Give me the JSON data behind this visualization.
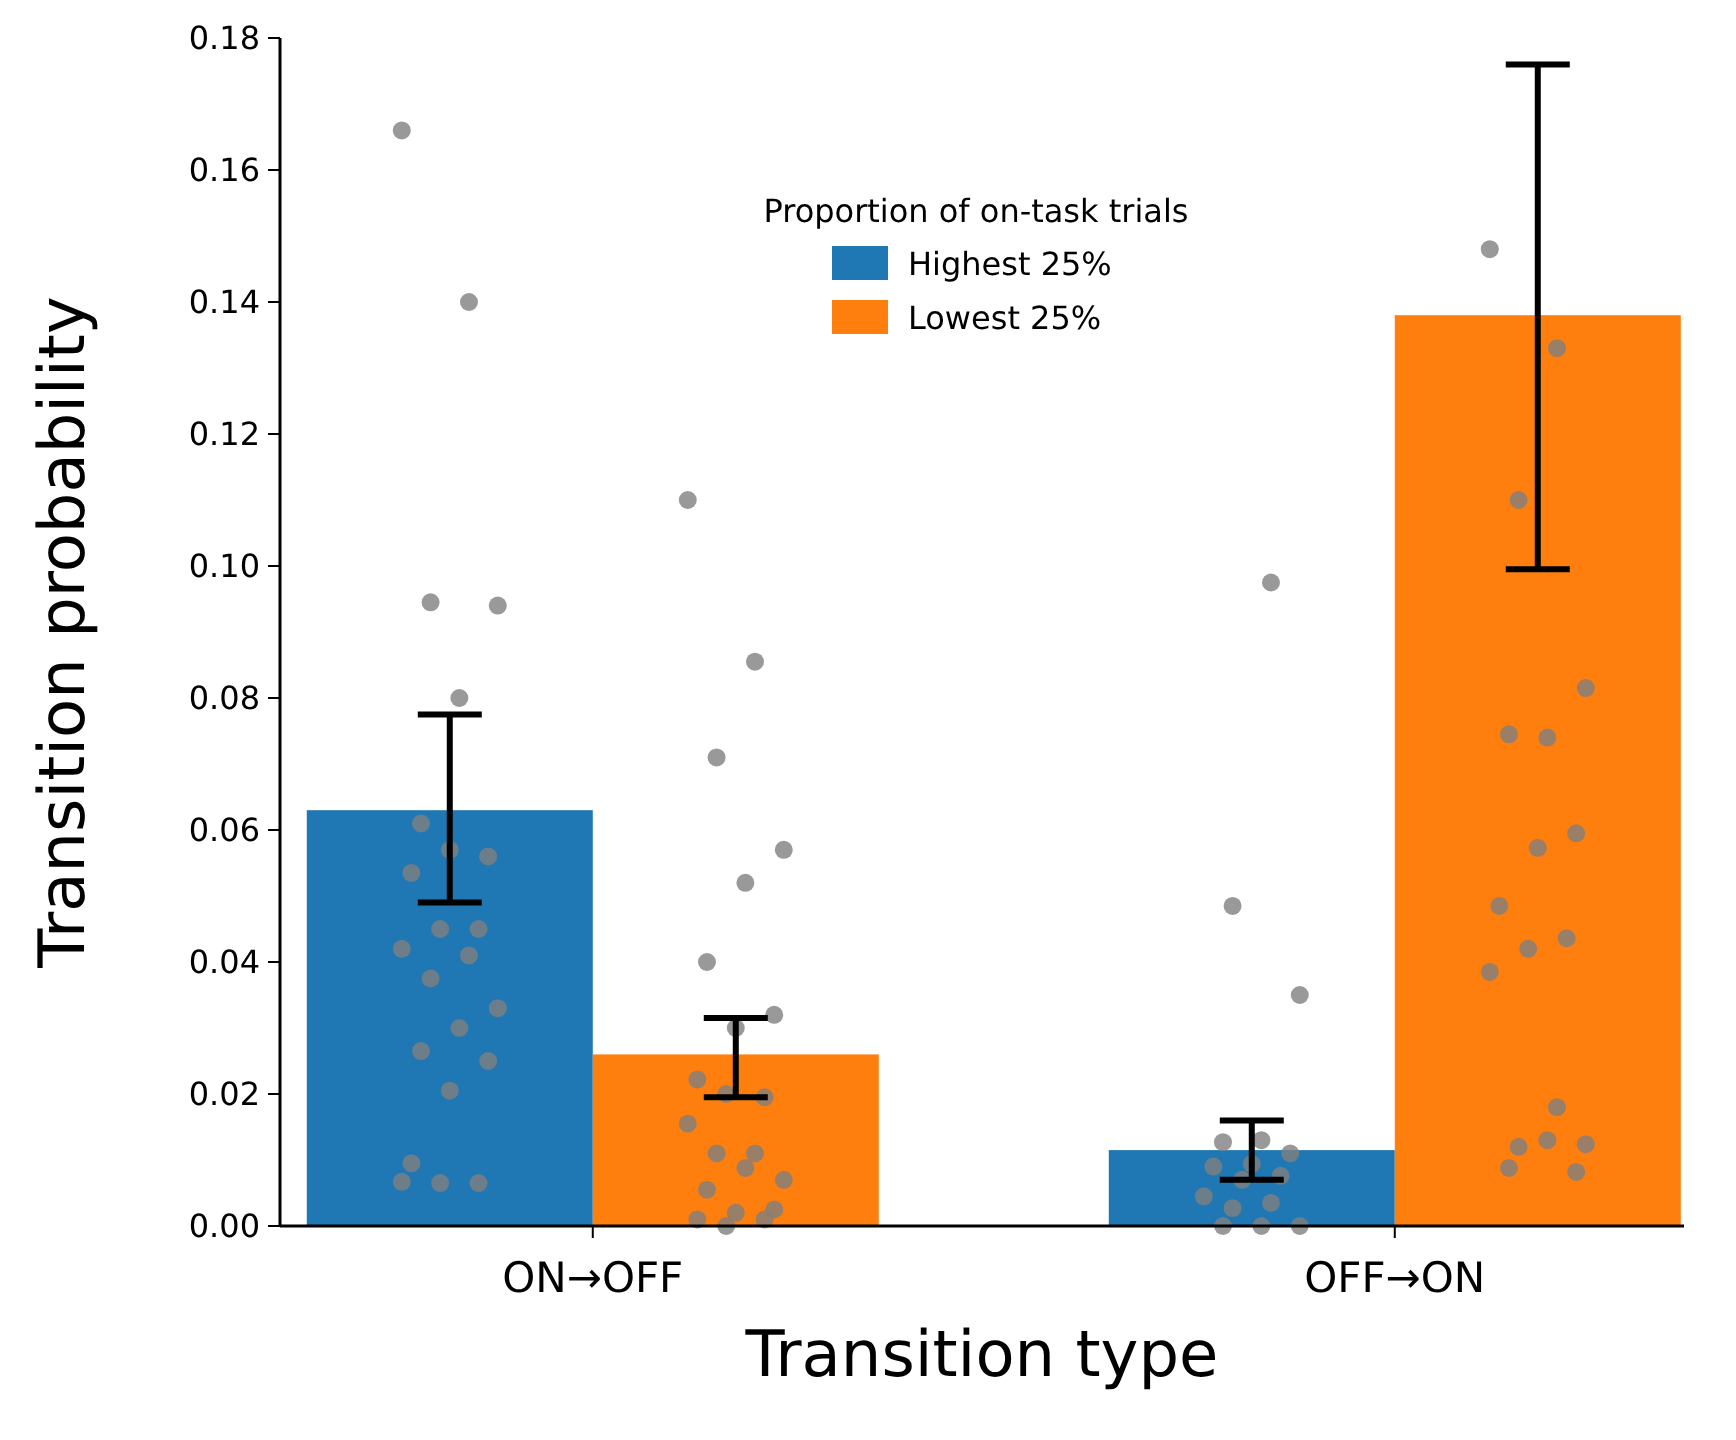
{
  "chart_data": {
    "type": "bar",
    "xlabel": "Transition type",
    "ylabel": "Transition probability",
    "legend_title": "Proportion of on-task trials",
    "categories": [
      "ON→OFF",
      "OFF→ON"
    ],
    "series": [
      {
        "name": "Highest 25%",
        "color": "#1f77b4",
        "values": [
          0.063,
          0.0115
        ],
        "errors": [
          [
            0.049,
            0.0775
          ],
          [
            0.007,
            0.016
          ]
        ]
      },
      {
        "name": "Lowest 25%",
        "color": "#ff7f0e",
        "values": [
          0.026,
          0.138
        ],
        "errors": [
          [
            0.0195,
            0.0315
          ],
          [
            0.0995,
            0.176
          ]
        ]
      },
      {
        "type": "scatter",
        "color": "#7f7f7f",
        "x": [
          "ON→OFF",
          "ON→OFF",
          "ON→OFF",
          "ON→OFF",
          "ON→OFF",
          "ON→OFF",
          "ON→OFF",
          "ON→OFF",
          "ON→OFF",
          "ON→OFF",
          "ON→OFF",
          "ON→OFF",
          "ON→OFF",
          "ON→OFF",
          "ON→OFF",
          "ON→OFF",
          "ON→OFF",
          "ON→OFF",
          "ON→OFF",
          "ON→OFF",
          "ON→OFF",
          "ON→OFF",
          "ON→OFF",
          "OFF→ON",
          "OFF→ON",
          "OFF→ON",
          "OFF→ON",
          "OFF→ON",
          "OFF→ON",
          "OFF→ON",
          "OFF→ON",
          "OFF→ON",
          "OFF→ON",
          "OFF→ON",
          "OFF→ON",
          "OFF→ON",
          "OFF→ON",
          "OFF→ON",
          "OFF→ON"
        ],
        "values": [
          0.166,
          0.14,
          0.0945,
          0.094,
          0.08,
          0.061,
          0.056,
          0.057,
          0.0535,
          0.045,
          0.045,
          0.042,
          0.041,
          0.0375,
          0.033,
          0.03,
          0.0265,
          0.025,
          0.0205,
          0.0095,
          0.0065,
          0.0065,
          0.0067,
          0.0975,
          0.0485,
          0.035,
          0.013,
          0.0127,
          0.011,
          0.0094,
          0.009,
          0.0076,
          0.007,
          0.0045,
          0.0035,
          0.0027,
          0,
          0,
          0
        ]
      },
      {
        "type": "scatter",
        "color": "#7f7f7f",
        "x": [
          "ON→OFF",
          "ON→OFF",
          "ON→OFF",
          "ON→OFF",
          "ON→OFF",
          "ON→OFF",
          "ON→OFF",
          "ON→OFF",
          "ON→OFF",
          "ON→OFF",
          "ON→OFF",
          "ON→OFF",
          "ON→OFF",
          "ON→OFF",
          "ON→OFF",
          "ON→OFF",
          "ON→OFF",
          "ON→OFF",
          "ON→OFF",
          "ON→OFF",
          "ON→OFF",
          "ON→OFF",
          "OFF→ON",
          "OFF→ON",
          "OFF→ON",
          "OFF→ON",
          "OFF→ON",
          "OFF→ON",
          "OFF→ON",
          "OFF→ON",
          "OFF→ON",
          "OFF→ON",
          "OFF→ON",
          "OFF→ON",
          "OFF→ON",
          "OFF→ON",
          "OFF→ON",
          "OFF→ON",
          "OFF→ON",
          "OFF→ON"
        ],
        "values": [
          0.11,
          0.0855,
          0.071,
          0.057,
          0.052,
          0.04,
          0.032,
          0.03,
          0.0222,
          0.0195,
          0.02,
          0.0155,
          0.011,
          0.011,
          0.007,
          0.0088,
          0.0055,
          0.0025,
          0.002,
          0.001,
          0.001,
          0,
          0.148,
          0.133,
          0.11,
          0.0815,
          0.074,
          0.0745,
          0.0595,
          0.0573,
          0.0485,
          0.0436,
          0.042,
          0.0385,
          0.018,
          0.012,
          0.0124,
          0.013,
          0.0088,
          0.0082
        ]
      }
    ],
    "ylim": [
      0,
      0.18
    ],
    "yticks": [
      {
        "value": 0,
        "label": "0.00"
      },
      {
        "value": 0.02,
        "label": "0.02"
      },
      {
        "value": 0.04,
        "label": "0.04"
      },
      {
        "value": 0.06,
        "label": "0.06"
      },
      {
        "value": 0.08,
        "label": "0.08"
      },
      {
        "value": 0.1,
        "label": "0.10"
      },
      {
        "value": 0.12,
        "label": "0.12"
      },
      {
        "value": 0.14,
        "label": "0.14"
      },
      {
        "value": 0.16,
        "label": "0.16"
      },
      {
        "value": 0.18,
        "label": "0.18"
      }
    ],
    "legend": "top",
    "grid": false,
    "marker": "circle"
  }
}
